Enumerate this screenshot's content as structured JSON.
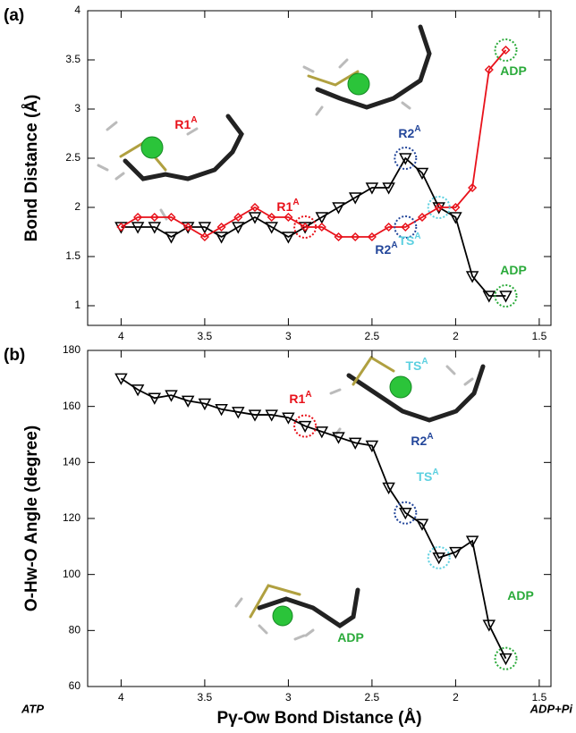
{
  "chart_data": [
    {
      "type": "line",
      "panel": "(a)",
      "ylabel": "Bond Distance (Å)",
      "xlim": [
        4.2,
        1.43
      ],
      "xticks": [
        4,
        3.5,
        3,
        2.5,
        2,
        1.5
      ],
      "ylim": [
        0.8,
        4
      ],
      "yticks": [
        1,
        1.5,
        2,
        2.5,
        3,
        3.5,
        4
      ],
      "x": [
        4.0,
        3.9,
        3.8,
        3.7,
        3.6,
        3.5,
        3.4,
        3.3,
        3.2,
        3.1,
        3.0,
        2.9,
        2.8,
        2.7,
        2.6,
        2.5,
        2.4,
        2.3,
        2.2,
        2.1,
        2.0,
        1.9,
        1.8,
        1.7
      ],
      "series": [
        {
          "color": "#000000",
          "marker": "triangle",
          "values": [
            1.8,
            1.8,
            1.8,
            1.7,
            1.8,
            1.8,
            1.7,
            1.8,
            1.9,
            1.8,
            1.7,
            1.8,
            1.9,
            2.0,
            2.1,
            2.2,
            2.2,
            2.5,
            2.35,
            2.0,
            1.9,
            1.3,
            1.1,
            1.1
          ]
        },
        {
          "color": "#e8111a",
          "marker": "diamond",
          "values": [
            1.8,
            1.9,
            1.9,
            1.9,
            1.8,
            1.7,
            1.8,
            1.9,
            2.0,
            1.9,
            1.9,
            1.8,
            1.8,
            1.7,
            1.7,
            1.7,
            1.8,
            1.8,
            1.9,
            2.0,
            2.0,
            2.2,
            3.4,
            3.6
          ]
        }
      ],
      "annotations": [
        {
          "text": "R1",
          "sup": "A",
          "color": "#e8111a"
        },
        {
          "text": "R1",
          "sup": "A",
          "color": "#e8111a"
        },
        {
          "text": "R2",
          "sup": "A",
          "color": "#23469a"
        },
        {
          "text": "R2",
          "sup": "A",
          "color": "#23469a"
        },
        {
          "text": "TS",
          "sup": "A",
          "color": "#5cd0e0"
        },
        {
          "text": "ADP",
          "color": "#2aaa3a"
        },
        {
          "text": "ADP",
          "color": "#2aaa3a"
        }
      ]
    },
    {
      "type": "line",
      "panel": "(b)",
      "ylabel": "O-Hw-O Angle (degree)",
      "xlabel": "Pγ-Ow Bond Distance (Å)",
      "start_label": "ATP",
      "end_label": "ADP+Pi",
      "xlim": [
        4.2,
        1.43
      ],
      "xticks": [
        4,
        3.5,
        3,
        2.5,
        2,
        1.5
      ],
      "ylim": [
        60,
        180
      ],
      "yticks": [
        60,
        80,
        100,
        120,
        140,
        160,
        180
      ],
      "x": [
        4.0,
        3.9,
        3.8,
        3.7,
        3.6,
        3.5,
        3.4,
        3.3,
        3.2,
        3.1,
        3.0,
        2.9,
        2.8,
        2.7,
        2.6,
        2.5,
        2.4,
        2.3,
        2.2,
        2.1,
        2.0,
        1.9,
        1.8,
        1.7
      ],
      "series": [
        {
          "color": "#000000",
          "marker": "triangle",
          "values": [
            170,
            166,
            163,
            164,
            162,
            161,
            159,
            158,
            157,
            157,
            156,
            153,
            151,
            149,
            147,
            146,
            131,
            122,
            118,
            106,
            108,
            112,
            82,
            70
          ]
        }
      ],
      "annotations": [
        {
          "text": "R1",
          "sup": "A",
          "color": "#e8111a"
        },
        {
          "text": "TS",
          "sup": "A",
          "color": "#5cd0e0"
        },
        {
          "text": "R2",
          "sup": "A",
          "color": "#23469a"
        },
        {
          "text": "TS",
          "sup": "A",
          "color": "#5cd0e0"
        },
        {
          "text": "ADP",
          "color": "#2aaa3a"
        },
        {
          "text": "ADP",
          "color": "#2aaa3a"
        }
      ]
    }
  ]
}
